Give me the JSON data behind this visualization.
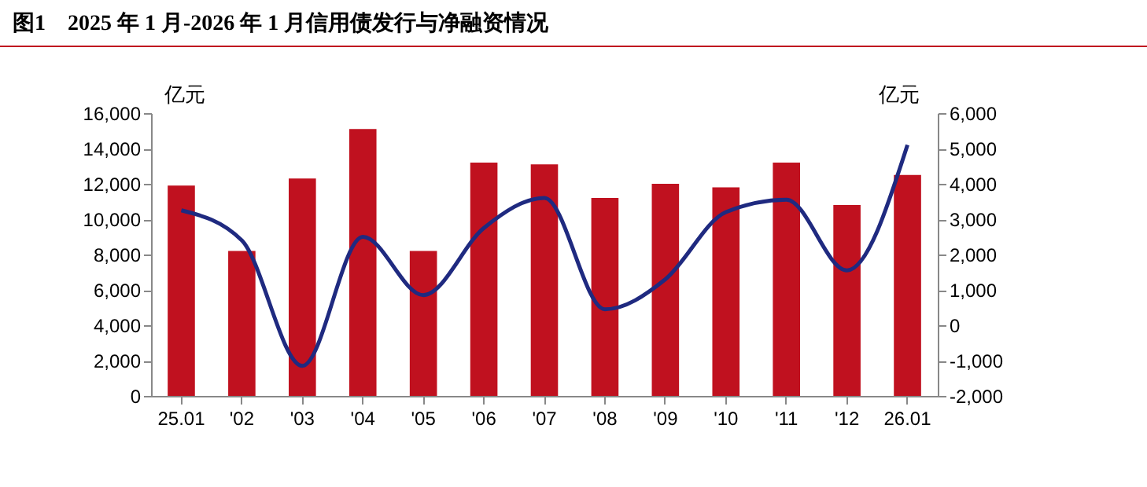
{
  "chart_data": {
    "type": "bar",
    "title": "图1　2025 年 1 月-2026 年 1 月信用债发行与净融资情况",
    "categories": [
      "25.01",
      "'02",
      "'03",
      "'04",
      "'05",
      "'06",
      "'07",
      "'08",
      "'09",
      "'10",
      "'11",
      "'12",
      "26.01"
    ],
    "ylabel": "亿元",
    "y2label": "亿元",
    "series": [
      {
        "color": "#c0111f",
        "values": [
          11900,
          8200,
          12300,
          15100,
          8200,
          13200,
          13100,
          11200,
          12000,
          11800,
          13200,
          10800,
          12500
        ]
      },
      {
        "type": "line",
        "axis": "y2",
        "color": "#1f2a80",
        "values": [
          3250,
          2400,
          -1150,
          2500,
          850,
          2750,
          3600,
          450,
          1300,
          3200,
          3550,
          1550,
          5100
        ]
      }
    ],
    "ylim": [
      0,
      16000
    ],
    "yticks": [
      0,
      {
        "value": 2000,
        "label": "2,000"
      },
      {
        "value": 4000,
        "label": "4,000"
      },
      {
        "value": 6000,
        "label": "6,000"
      },
      {
        "value": 8000,
        "label": "8,000"
      },
      {
        "value": 10000,
        "label": "10,000"
      },
      {
        "value": 12000,
        "label": "12,000"
      },
      {
        "value": 14000,
        "label": "14,000"
      },
      {
        "value": 16000,
        "label": "16,000"
      }
    ],
    "y2lim": [
      -2000,
      6000
    ],
    "y2ticks": [
      {
        "value": -2000,
        "label": "-2,000"
      },
      {
        "value": -1000,
        "label": "-1,000"
      },
      0,
      {
        "value": 1000,
        "label": "1,000"
      },
      {
        "value": 2000,
        "label": "2,000"
      },
      {
        "value": 3000,
        "label": "3,000"
      },
      {
        "value": 4000,
        "label": "4,000"
      },
      {
        "value": 5000,
        "label": "5,000"
      },
      {
        "value": 6000,
        "label": "6,000"
      }
    ],
    "grid": false
  }
}
